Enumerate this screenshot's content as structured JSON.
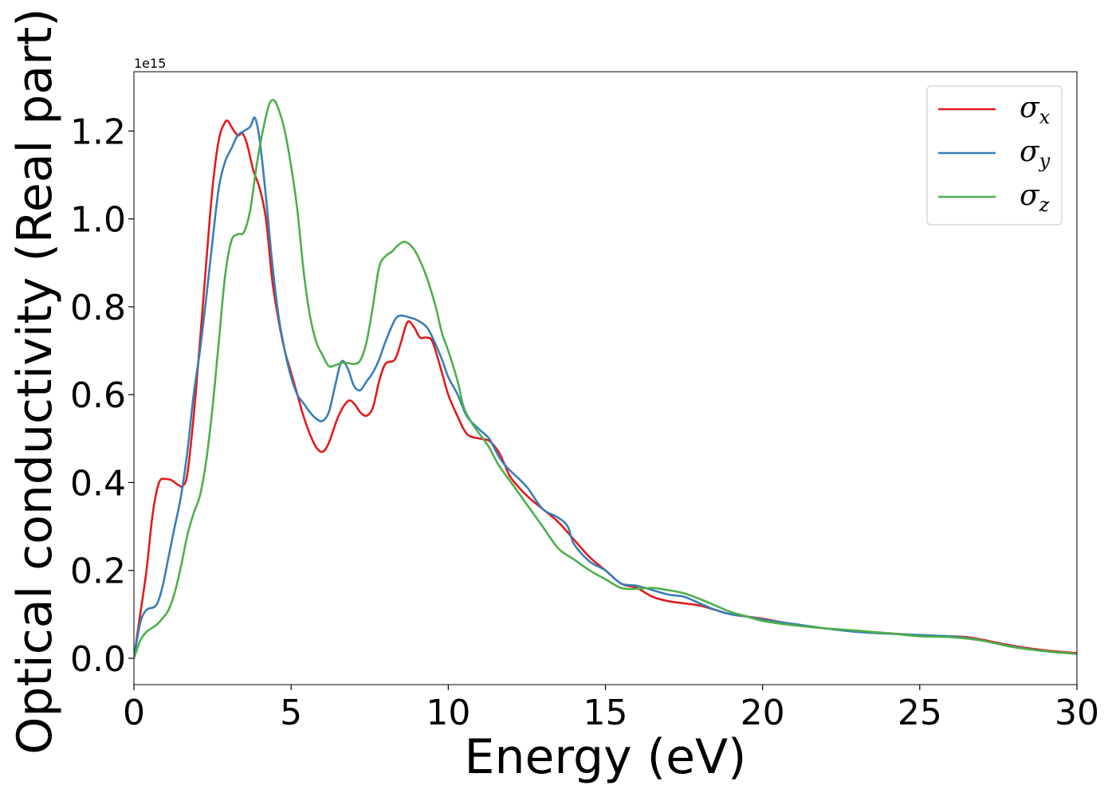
{
  "chart_data": {
    "type": "line",
    "xlabel": "Energy (eV)",
    "ylabel": "Optical conductivity (Real part)",
    "y_offset_text": "1e15",
    "y_scale": 1000000000000000.0,
    "xlim": [
      0,
      30
    ],
    "ylim": [
      -0.06,
      1.335
    ],
    "x_ticks": [
      0,
      5,
      10,
      15,
      20,
      25,
      30
    ],
    "x_tick_labels": [
      "0",
      "5",
      "10",
      "15",
      "20",
      "25",
      "30"
    ],
    "y_ticks": [
      0.0,
      0.2,
      0.4,
      0.6,
      0.8,
      1.0,
      1.2
    ],
    "y_tick_labels": [
      "0.0",
      "0.2",
      "0.4",
      "0.6",
      "0.8",
      "1.0",
      "1.2"
    ],
    "grid": false,
    "legend_position": "top-right",
    "series": [
      {
        "name": "σ",
        "name_subscript": "x",
        "color": "#e41a1c",
        "points": [
          [
            0,
            0
          ],
          [
            0.2,
            0.1
          ],
          [
            0.4,
            0.2
          ],
          [
            0.6,
            0.33
          ],
          [
            0.8,
            0.4
          ],
          [
            1.0,
            0.408
          ],
          [
            1.2,
            0.405
          ],
          [
            1.4,
            0.395
          ],
          [
            1.55,
            0.392
          ],
          [
            1.7,
            0.42
          ],
          [
            1.9,
            0.55
          ],
          [
            2.1,
            0.72
          ],
          [
            2.3,
            0.9
          ],
          [
            2.5,
            1.07
          ],
          [
            2.7,
            1.18
          ],
          [
            2.9,
            1.22
          ],
          [
            3.0,
            1.222
          ],
          [
            3.1,
            1.21
          ],
          [
            3.3,
            1.19
          ],
          [
            3.45,
            1.195
          ],
          [
            3.6,
            1.17
          ],
          [
            3.8,
            1.11
          ],
          [
            4.0,
            1.07
          ],
          [
            4.2,
            1.0
          ],
          [
            4.4,
            0.86
          ],
          [
            4.6,
            0.77
          ],
          [
            4.8,
            0.7
          ],
          [
            5.0,
            0.65
          ],
          [
            5.2,
            0.6
          ],
          [
            5.4,
            0.55
          ],
          [
            5.6,
            0.51
          ],
          [
            5.8,
            0.48
          ],
          [
            6.0,
            0.47
          ],
          [
            6.2,
            0.49
          ],
          [
            6.5,
            0.55
          ],
          [
            6.8,
            0.585
          ],
          [
            7.0,
            0.58
          ],
          [
            7.2,
            0.56
          ],
          [
            7.4,
            0.552
          ],
          [
            7.6,
            0.57
          ],
          [
            7.8,
            0.63
          ],
          [
            8.0,
            0.67
          ],
          [
            8.3,
            0.68
          ],
          [
            8.5,
            0.72
          ],
          [
            8.7,
            0.765
          ],
          [
            8.9,
            0.755
          ],
          [
            9.1,
            0.73
          ],
          [
            9.3,
            0.73
          ],
          [
            9.5,
            0.72
          ],
          [
            9.8,
            0.65
          ],
          [
            10.0,
            0.6
          ],
          [
            10.3,
            0.55
          ],
          [
            10.6,
            0.51
          ],
          [
            11.0,
            0.5
          ],
          [
            11.3,
            0.495
          ],
          [
            11.6,
            0.47
          ],
          [
            11.8,
            0.44
          ],
          [
            12.0,
            0.41
          ],
          [
            12.5,
            0.37
          ],
          [
            13.0,
            0.34
          ],
          [
            13.5,
            0.31
          ],
          [
            14.0,
            0.27
          ],
          [
            14.5,
            0.23
          ],
          [
            15.0,
            0.2
          ],
          [
            15.5,
            0.17
          ],
          [
            16.0,
            0.16
          ],
          [
            16.5,
            0.14
          ],
          [
            17.0,
            0.13
          ],
          [
            17.5,
            0.125
          ],
          [
            18.0,
            0.12
          ],
          [
            18.5,
            0.11
          ],
          [
            19.0,
            0.1
          ],
          [
            20.0,
            0.09
          ],
          [
            21.0,
            0.077
          ],
          [
            22.0,
            0.068
          ],
          [
            23.0,
            0.062
          ],
          [
            24.0,
            0.057
          ],
          [
            25.0,
            0.052
          ],
          [
            26.0,
            0.05
          ],
          [
            26.5,
            0.048
          ],
          [
            27.0,
            0.042
          ],
          [
            28.0,
            0.028
          ],
          [
            29.0,
            0.018
          ],
          [
            30.0,
            0.012
          ]
        ]
      },
      {
        "name": "σ",
        "name_subscript": "y",
        "color": "#377eb8",
        "points": [
          [
            0,
            0
          ],
          [
            0.2,
            0.08
          ],
          [
            0.4,
            0.11
          ],
          [
            0.7,
            0.12
          ],
          [
            0.9,
            0.16
          ],
          [
            1.1,
            0.23
          ],
          [
            1.3,
            0.3
          ],
          [
            1.5,
            0.37
          ],
          [
            1.7,
            0.47
          ],
          [
            1.9,
            0.6
          ],
          [
            2.1,
            0.7
          ],
          [
            2.3,
            0.82
          ],
          [
            2.5,
            0.95
          ],
          [
            2.7,
            1.07
          ],
          [
            2.9,
            1.13
          ],
          [
            3.1,
            1.16
          ],
          [
            3.3,
            1.19
          ],
          [
            3.5,
            1.2
          ],
          [
            3.7,
            1.21
          ],
          [
            3.85,
            1.23
          ],
          [
            4.0,
            1.18
          ],
          [
            4.2,
            1.05
          ],
          [
            4.4,
            0.9
          ],
          [
            4.6,
            0.78
          ],
          [
            4.8,
            0.7
          ],
          [
            5.0,
            0.64
          ],
          [
            5.2,
            0.6
          ],
          [
            5.4,
            0.58
          ],
          [
            5.6,
            0.56
          ],
          [
            5.8,
            0.545
          ],
          [
            6.0,
            0.54
          ],
          [
            6.2,
            0.56
          ],
          [
            6.4,
            0.62
          ],
          [
            6.6,
            0.675
          ],
          [
            6.8,
            0.66
          ],
          [
            7.0,
            0.62
          ],
          [
            7.2,
            0.61
          ],
          [
            7.4,
            0.63
          ],
          [
            7.6,
            0.65
          ],
          [
            7.8,
            0.68
          ],
          [
            8.0,
            0.72
          ],
          [
            8.3,
            0.77
          ],
          [
            8.5,
            0.78
          ],
          [
            8.8,
            0.775
          ],
          [
            9.0,
            0.77
          ],
          [
            9.3,
            0.755
          ],
          [
            9.5,
            0.73
          ],
          [
            9.8,
            0.68
          ],
          [
            10.0,
            0.64
          ],
          [
            10.3,
            0.6
          ],
          [
            10.6,
            0.55
          ],
          [
            11.0,
            0.52
          ],
          [
            11.3,
            0.5
          ],
          [
            11.6,
            0.46
          ],
          [
            11.8,
            0.44
          ],
          [
            12.0,
            0.425
          ],
          [
            12.5,
            0.39
          ],
          [
            13.0,
            0.34
          ],
          [
            13.5,
            0.32
          ],
          [
            13.8,
            0.3
          ],
          [
            14.0,
            0.26
          ],
          [
            14.5,
            0.22
          ],
          [
            15.0,
            0.2
          ],
          [
            15.5,
            0.17
          ],
          [
            16.0,
            0.165
          ],
          [
            16.5,
            0.155
          ],
          [
            17.0,
            0.145
          ],
          [
            17.5,
            0.14
          ],
          [
            18.0,
            0.125
          ],
          [
            18.5,
            0.11
          ],
          [
            19.0,
            0.1
          ],
          [
            19.5,
            0.095
          ],
          [
            20.0,
            0.088
          ],
          [
            21.0,
            0.078
          ],
          [
            22.0,
            0.068
          ],
          [
            23.0,
            0.06
          ],
          [
            24.0,
            0.056
          ],
          [
            25.0,
            0.053
          ],
          [
            26.0,
            0.05
          ],
          [
            26.5,
            0.046
          ],
          [
            27.0,
            0.04
          ],
          [
            28.0,
            0.026
          ],
          [
            29.0,
            0.016
          ],
          [
            30.0,
            0.01
          ]
        ]
      },
      {
        "name": "σ",
        "name_subscript": "z",
        "color": "#4daf4a",
        "points": [
          [
            0,
            0
          ],
          [
            0.2,
            0.04
          ],
          [
            0.4,
            0.06
          ],
          [
            0.7,
            0.075
          ],
          [
            0.9,
            0.09
          ],
          [
            1.1,
            0.11
          ],
          [
            1.3,
            0.15
          ],
          [
            1.5,
            0.21
          ],
          [
            1.7,
            0.28
          ],
          [
            1.9,
            0.33
          ],
          [
            2.1,
            0.37
          ],
          [
            2.3,
            0.45
          ],
          [
            2.5,
            0.57
          ],
          [
            2.7,
            0.72
          ],
          [
            2.9,
            0.87
          ],
          [
            3.1,
            0.95
          ],
          [
            3.3,
            0.965
          ],
          [
            3.5,
            0.97
          ],
          [
            3.7,
            1.02
          ],
          [
            3.9,
            1.12
          ],
          [
            4.1,
            1.2
          ],
          [
            4.3,
            1.26
          ],
          [
            4.45,
            1.27
          ],
          [
            4.6,
            1.25
          ],
          [
            4.8,
            1.2
          ],
          [
            5.0,
            1.12
          ],
          [
            5.2,
            1.02
          ],
          [
            5.4,
            0.88
          ],
          [
            5.6,
            0.78
          ],
          [
            5.8,
            0.72
          ],
          [
            6.0,
            0.69
          ],
          [
            6.2,
            0.665
          ],
          [
            6.4,
            0.667
          ],
          [
            6.6,
            0.672
          ],
          [
            6.8,
            0.672
          ],
          [
            7.0,
            0.67
          ],
          [
            7.2,
            0.678
          ],
          [
            7.4,
            0.72
          ],
          [
            7.6,
            0.8
          ],
          [
            7.8,
            0.89
          ],
          [
            8.0,
            0.915
          ],
          [
            8.2,
            0.925
          ],
          [
            8.4,
            0.94
          ],
          [
            8.6,
            0.948
          ],
          [
            8.8,
            0.94
          ],
          [
            9.0,
            0.92
          ],
          [
            9.3,
            0.87
          ],
          [
            9.6,
            0.8
          ],
          [
            9.8,
            0.74
          ],
          [
            10.0,
            0.7
          ],
          [
            10.3,
            0.63
          ],
          [
            10.5,
            0.57
          ],
          [
            10.8,
            0.53
          ],
          [
            11.0,
            0.51
          ],
          [
            11.3,
            0.48
          ],
          [
            11.6,
            0.44
          ],
          [
            12.0,
            0.4
          ],
          [
            12.5,
            0.35
          ],
          [
            13.0,
            0.3
          ],
          [
            13.5,
            0.25
          ],
          [
            14.0,
            0.225
          ],
          [
            14.5,
            0.2
          ],
          [
            15.0,
            0.18
          ],
          [
            15.5,
            0.16
          ],
          [
            16.0,
            0.158
          ],
          [
            16.5,
            0.16
          ],
          [
            17.0,
            0.155
          ],
          [
            17.5,
            0.148
          ],
          [
            18.0,
            0.135
          ],
          [
            18.5,
            0.12
          ],
          [
            19.0,
            0.105
          ],
          [
            19.5,
            0.095
          ],
          [
            20.0,
            0.085
          ],
          [
            21.0,
            0.075
          ],
          [
            22.0,
            0.068
          ],
          [
            23.0,
            0.063
          ],
          [
            24.0,
            0.057
          ],
          [
            25.0,
            0.05
          ],
          [
            26.0,
            0.048
          ],
          [
            27.0,
            0.04
          ],
          [
            28.0,
            0.025
          ],
          [
            29.0,
            0.016
          ],
          [
            30.0,
            0.01
          ]
        ]
      }
    ]
  }
}
